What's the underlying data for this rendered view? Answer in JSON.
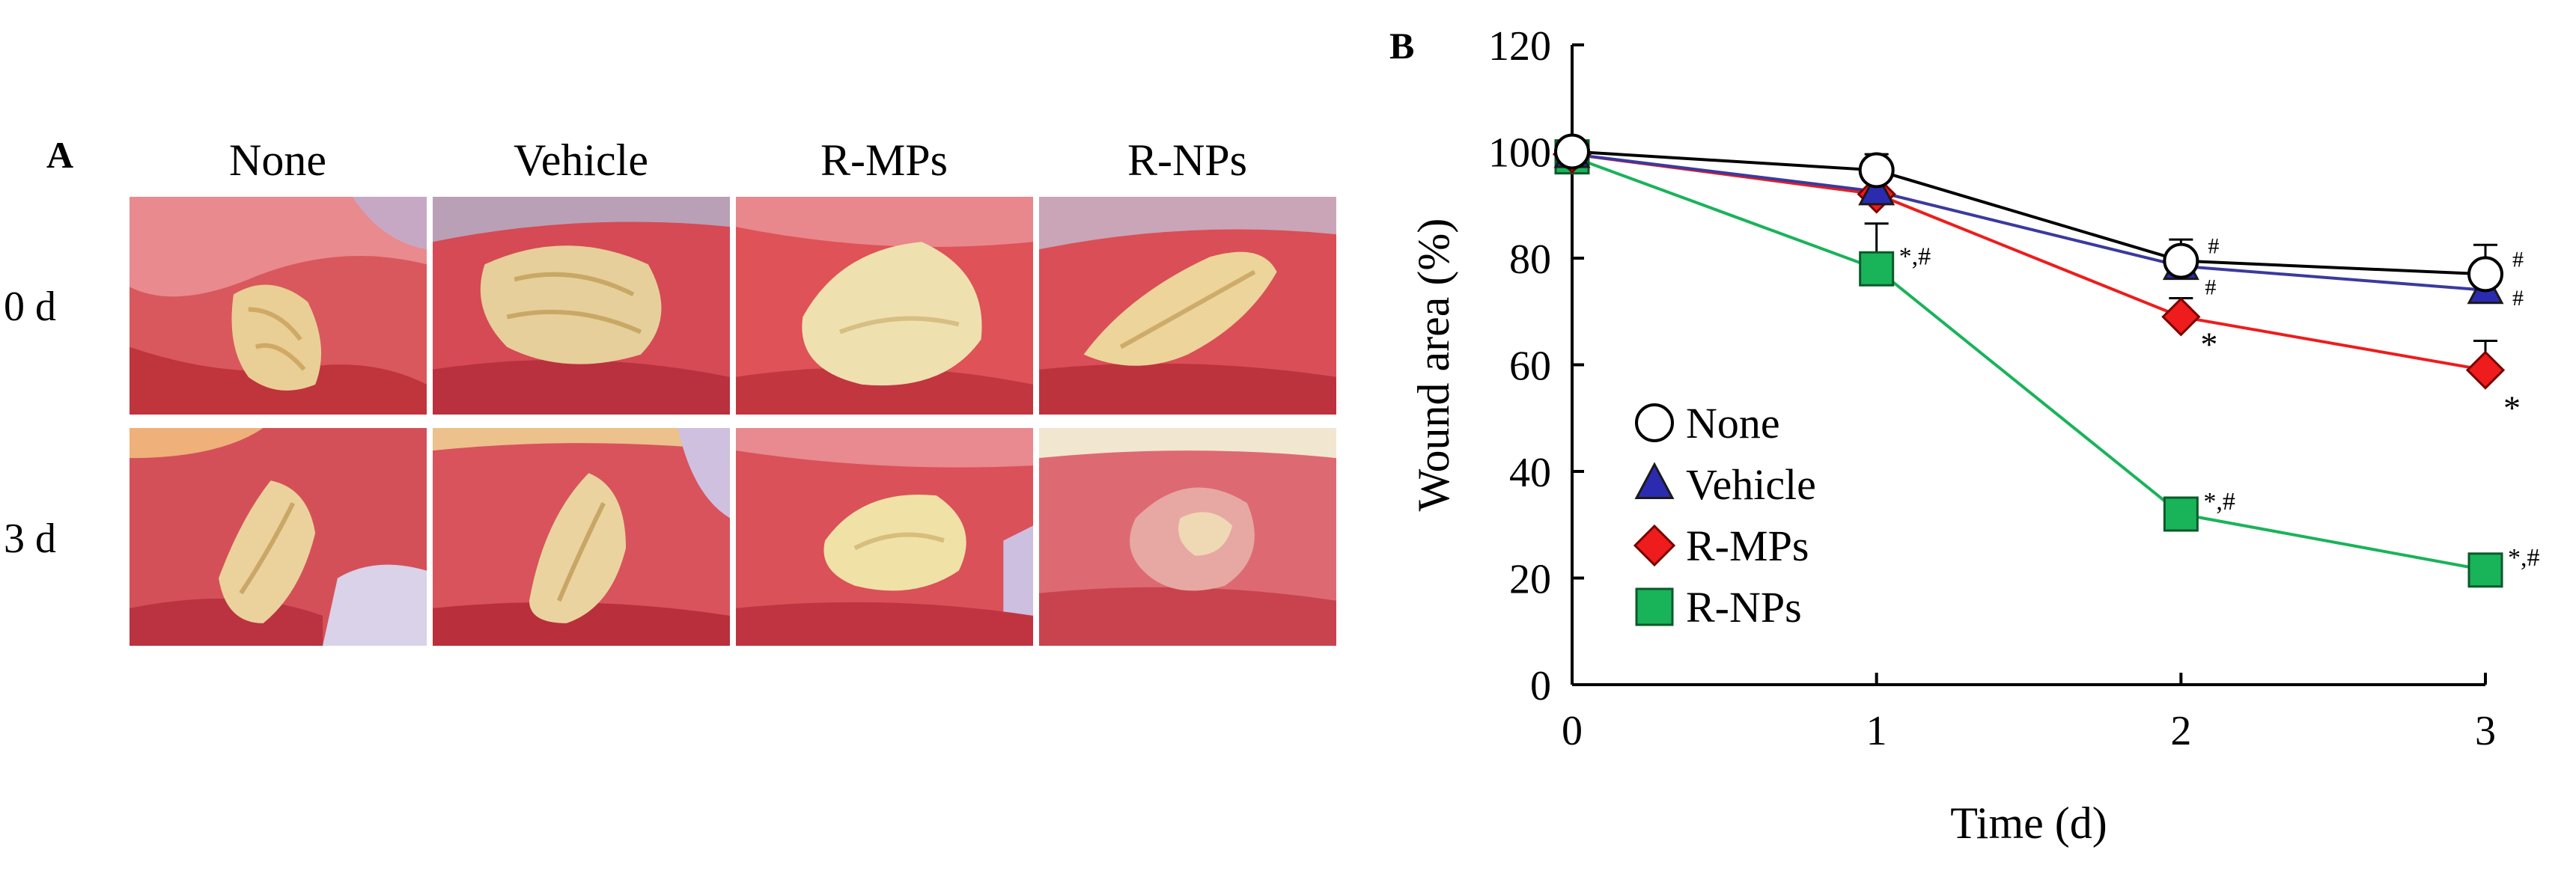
{
  "panel_a": {
    "label": "A",
    "columns": [
      "None",
      "Vehicle",
      "R-MPs",
      "R-NPs"
    ],
    "rows": [
      "0 d",
      "3 d"
    ]
  },
  "panel_b": {
    "label": "B"
  },
  "chart_data": {
    "type": "line",
    "xlabel": "Time (d)",
    "ylabel": "Wound area (%)",
    "x": [
      0,
      1,
      2,
      3
    ],
    "xticks": [
      0,
      1,
      2,
      3
    ],
    "xlim": [
      0,
      3
    ],
    "ylim": [
      0,
      120
    ],
    "yticks": [
      0,
      20,
      40,
      60,
      80,
      100,
      120
    ],
    "grid": false,
    "legend_position": "bottom-left",
    "series": [
      {
        "name": "None",
        "values": [
          100,
          96.5,
          79.5,
          77
        ],
        "errors": [
          0,
          3,
          4,
          5.5
        ],
        "marker": "circle",
        "color": "#000000",
        "fill": "#ffffff",
        "annotations": [
          "",
          "",
          "#",
          "#"
        ]
      },
      {
        "name": "Vehicle",
        "values": [
          99.5,
          92.5,
          78.5,
          74
        ],
        "errors": [
          0,
          0,
          0,
          0
        ],
        "marker": "triangle",
        "color": "#3a3a9e",
        "fill": "#2b2bb0",
        "annotations": [
          "",
          "",
          "",
          "#"
        ]
      },
      {
        "name": "R-MPs",
        "values": [
          99.5,
          92,
          69,
          59
        ],
        "errors": [
          0,
          0,
          3.5,
          5.5
        ],
        "marker": "diamond",
        "color": "#ee1c1c",
        "fill": "#ee1c1c",
        "annotations": [
          "",
          "",
          "#|*",
          "*"
        ]
      },
      {
        "name": "R-NPs",
        "values": [
          99,
          78,
          32,
          21.5
        ],
        "errors": [
          0,
          8.5,
          3,
          2.5
        ],
        "marker": "square",
        "color": "#19b35a",
        "fill": "#19b35a",
        "annotations": [
          "",
          "*,#",
          "*,#",
          "*,#"
        ]
      }
    ]
  }
}
